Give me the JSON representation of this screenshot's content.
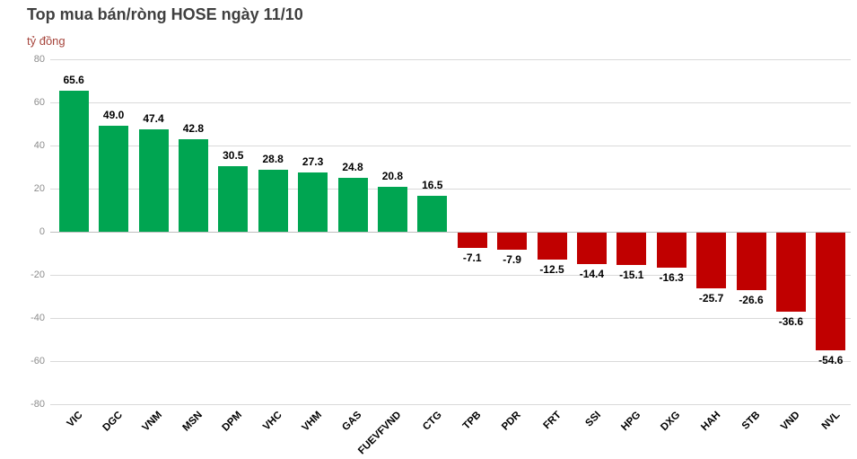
{
  "chart_data": {
    "type": "bar",
    "title": "Top mua bán/ròng HOSE ngày 11/10",
    "ylabel": "tỷ đồng",
    "xlabel": "",
    "categories": [
      "VIC",
      "DGC",
      "VNM",
      "MSN",
      "DPM",
      "VHC",
      "VHM",
      "GAS",
      "FUEVFVND",
      "CTG",
      "TPB",
      "PDR",
      "FRT",
      "SSI",
      "HPG",
      "DXG",
      "HAH",
      "STB",
      "VND",
      "NVL"
    ],
    "values": [
      65.6,
      49.0,
      47.4,
      42.8,
      30.5,
      28.8,
      27.3,
      24.8,
      20.8,
      16.5,
      -7.1,
      -7.9,
      -12.5,
      -14.4,
      -15.1,
      -16.3,
      -25.7,
      -26.6,
      -36.6,
      -54.6
    ],
    "ylim": [
      -80,
      80
    ],
    "ytick_step": 20,
    "grid": true,
    "legend": false,
    "value_label_decimals": 1,
    "colors": {
      "positive": "#00A551",
      "negative": "#C00000",
      "title": "#3F3F3F",
      "unit_label": "#A6453C",
      "tick_label": "#8C8C8C",
      "gridline": "#D9D9D9",
      "zero_line": "#BFBFBF",
      "value_label": "#000000",
      "category_label": "#000000"
    }
  }
}
